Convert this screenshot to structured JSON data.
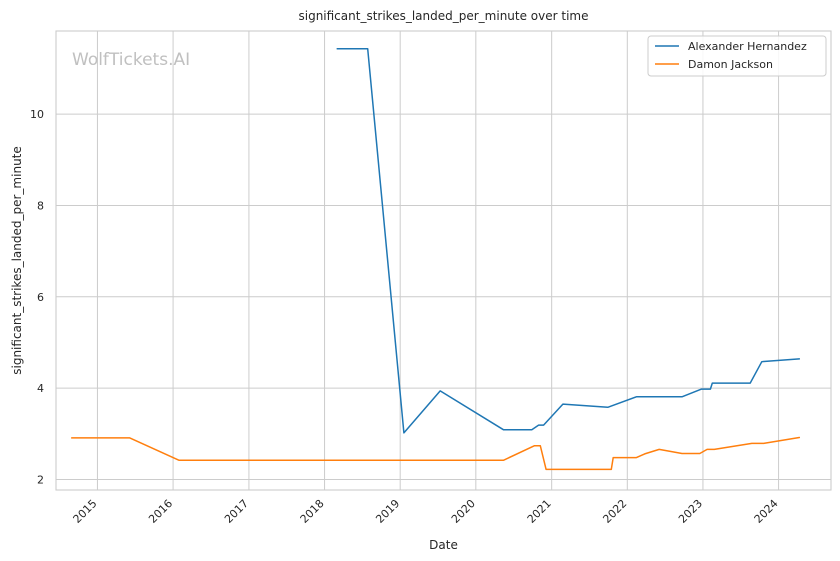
{
  "chart_data": {
    "type": "line",
    "title": "significant_strikes_landed_per_minute over time",
    "xlabel": "Date",
    "ylabel": "significant_strikes_landed_per_minute",
    "watermark": "WolfTickets.AI",
    "grid": true,
    "legend_position": "top-right",
    "x_tick_labels": [
      "2015",
      "2016",
      "2017",
      "2018",
      "2019",
      "2020",
      "2021",
      "2022",
      "2023",
      "2024"
    ],
    "y_tick_labels": [
      "2",
      "4",
      "6",
      "8",
      "10"
    ],
    "xlim": [
      "2014-06-15",
      "2024-09-10"
    ],
    "ylim": [
      1.77,
      11.82
    ],
    "series": [
      {
        "name": "Alexander Hernandez",
        "color": "#1f77b4",
        "points": [
          [
            "2018-03-03",
            11.43
          ],
          [
            "2018-07-28",
            11.43
          ],
          [
            "2019-01-19",
            3.02
          ],
          [
            "2019-07-13",
            3.94
          ],
          [
            "2020-05-13",
            3.09
          ],
          [
            "2020-09-27",
            3.09
          ],
          [
            "2020-10-30",
            3.19
          ],
          [
            "2020-11-23",
            3.19
          ],
          [
            "2021-02-24",
            3.65
          ],
          [
            "2021-09-29",
            3.58
          ],
          [
            "2022-02-14",
            3.81
          ],
          [
            "2022-05-17",
            3.81
          ],
          [
            "2022-09-22",
            3.81
          ],
          [
            "2022-12-25",
            3.98
          ],
          [
            "2023-02-06",
            3.98
          ],
          [
            "2023-02-15",
            4.11
          ],
          [
            "2023-08-17",
            4.11
          ],
          [
            "2023-10-12",
            4.58
          ],
          [
            "2024-04-10",
            4.64
          ]
        ]
      },
      {
        "name": "Damon Jackson",
        "color": "#ff7f0e",
        "points": [
          [
            "2014-08-30",
            2.91
          ],
          [
            "2015-06-06",
            2.91
          ],
          [
            "2016-01-30",
            2.42
          ],
          [
            "2020-05-13",
            2.42
          ],
          [
            "2020-10-10",
            2.74
          ],
          [
            "2020-11-07",
            2.74
          ],
          [
            "2020-12-05",
            2.22
          ],
          [
            "2021-03-20",
            2.22
          ],
          [
            "2021-10-16",
            2.22
          ],
          [
            "2021-10-25",
            2.48
          ],
          [
            "2022-02-14",
            2.48
          ],
          [
            "2022-03-26",
            2.56
          ],
          [
            "2022-06-04",
            2.66
          ],
          [
            "2022-09-22",
            2.57
          ],
          [
            "2022-12-17",
            2.57
          ],
          [
            "2023-01-21",
            2.66
          ],
          [
            "2023-02-25",
            2.66
          ],
          [
            "2023-08-25",
            2.79
          ],
          [
            "2023-10-21",
            2.79
          ],
          [
            "2024-04-10",
            2.92
          ]
        ]
      }
    ]
  }
}
